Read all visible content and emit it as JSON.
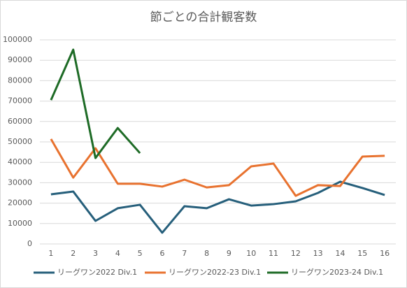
{
  "chart_data": {
    "type": "line",
    "title": "節ごとの合計観客数",
    "categories": [
      "1",
      "2",
      "3",
      "4",
      "5",
      "6",
      "7",
      "8",
      "9",
      "10",
      "11",
      "12",
      "13",
      "14",
      "15",
      "16"
    ],
    "series": [
      {
        "name": "リーグワン2022 Div.1",
        "color": "#265f7b",
        "values": [
          24300,
          25700,
          11300,
          17500,
          19200,
          5500,
          18500,
          17500,
          21900,
          18800,
          19500,
          20900,
          25000,
          30500,
          27400,
          24000
        ]
      },
      {
        "name": "リーグワン2022-23 Div.1",
        "color": "#e8722f",
        "values": [
          51400,
          32500,
          46900,
          29500,
          29500,
          28100,
          31500,
          27700,
          28800,
          38000,
          39400,
          23600,
          28800,
          28400,
          42800,
          43200
        ]
      },
      {
        "name": "リーグワン2023-24 Div.1",
        "color": "#1e6b26",
        "values": [
          70500,
          95200,
          42100,
          56800,
          44500,
          null,
          null,
          null,
          null,
          null,
          null,
          null,
          null,
          null,
          null,
          null
        ]
      }
    ],
    "ylim": [
      0,
      100000
    ],
    "yticks": [
      0,
      10000,
      20000,
      30000,
      40000,
      50000,
      60000,
      70000,
      80000,
      90000,
      100000
    ],
    "grid": true,
    "legend": "bottom"
  }
}
